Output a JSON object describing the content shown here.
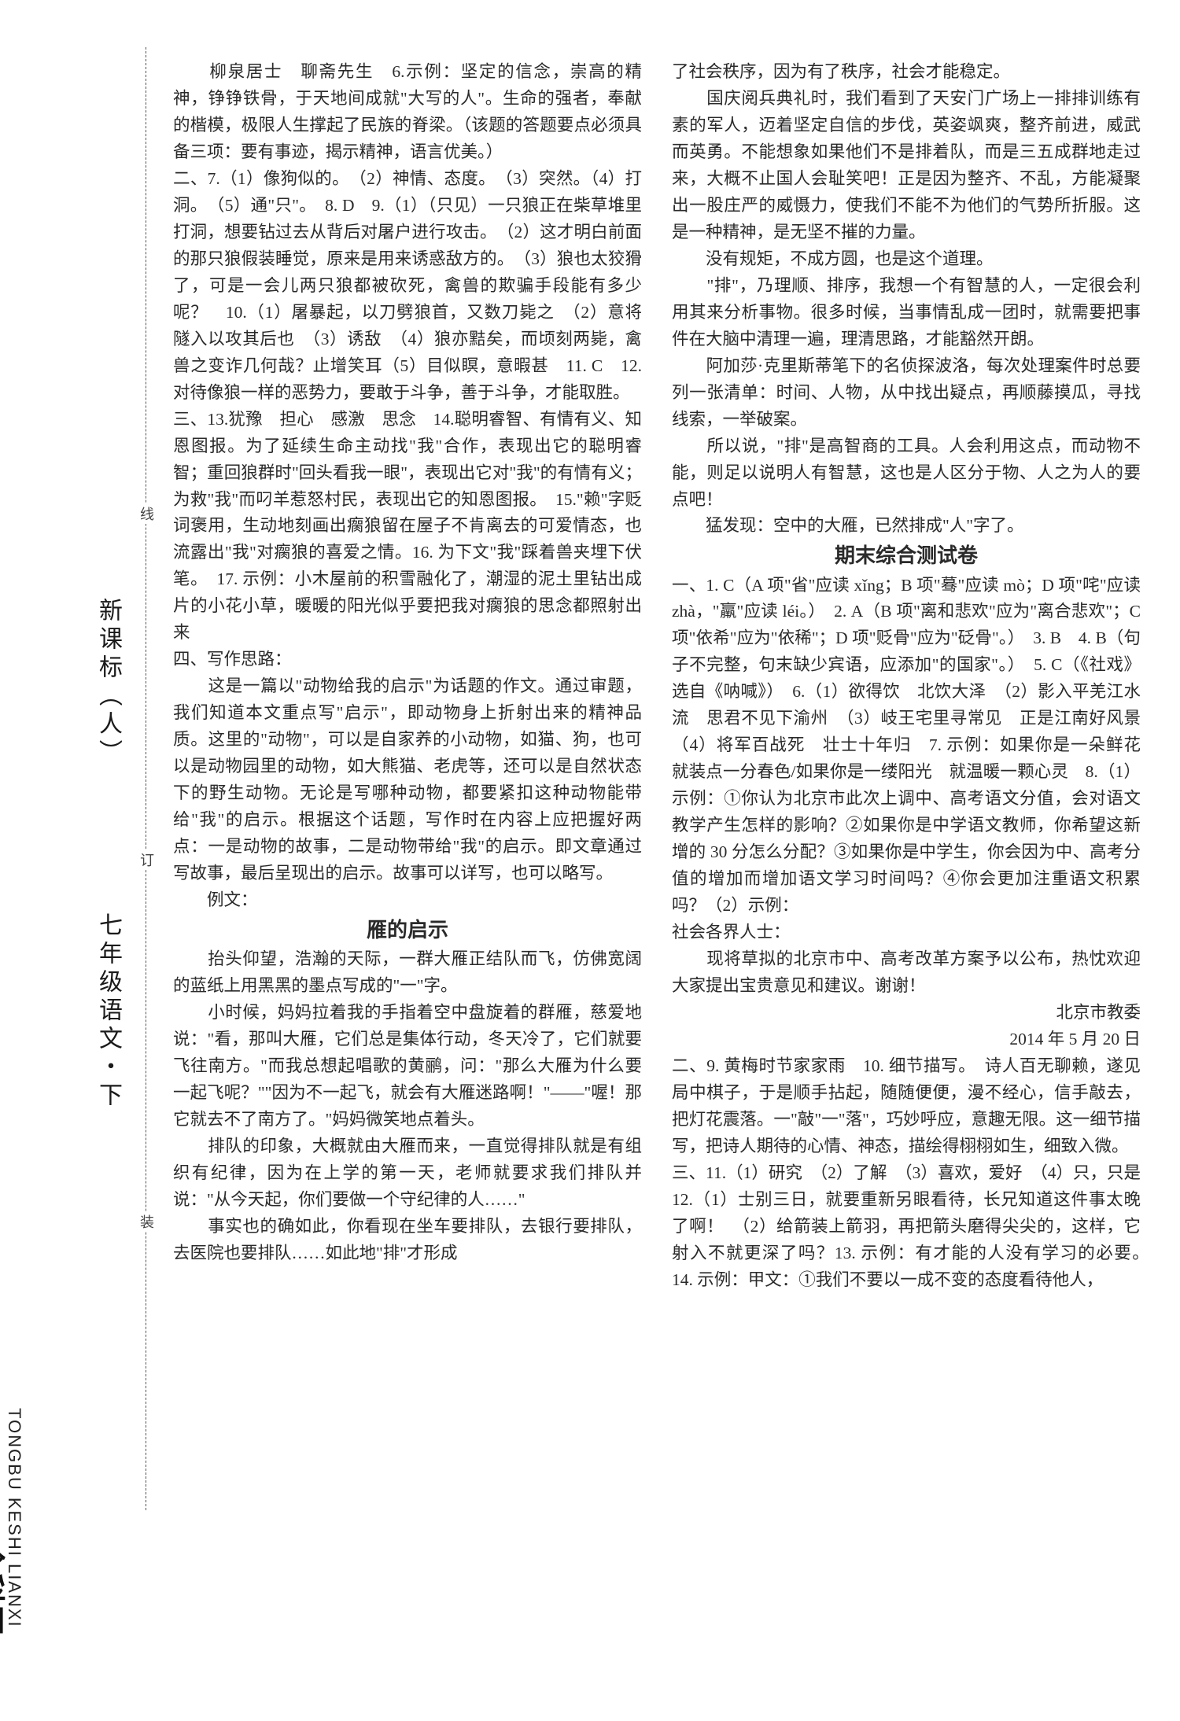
{
  "vertical_labels": {
    "label1": "新课标（人）",
    "label2": "七年级语文・下",
    "label3": ""
  },
  "spine": {
    "series": "TONGBU KESHI LIANXI",
    "brand": "全科王"
  },
  "binding": {
    "c1": "线",
    "c2": "订",
    "c3": "装"
  },
  "left_column": {
    "p1": "　　柳泉居士　聊斋先生　6.示例：坚定的信念，崇高的精神，铮铮铁骨，于天地间成就\"大写的人\"。生命的强者，奉献的楷模，极限人生撑起了民族的脊梁。（该题的答题要点必须具备三项：要有事迹，揭示精神，语言优美。）",
    "p2": "二、7.（1）像狗似的。　（2）神情、态度。　（3）突然。（4）打洞。　（5）通\"只\"。　8. D　9.（1）（只见）一只狼正在柴草堆里打洞，想要钻过去从背后对屠户进行攻击。　（2）这才明白前面的那只狼假装睡觉，原来是用来诱惑敌方的。　（3）狼也太狡猾了，可是一会儿两只狼都被砍死，禽兽的欺骗手段能有多少呢？　10.（1）屠暴起，以刀劈狼首，又数刀毙之　（2）意将隧入以攻其后也　（3）诱敌　（4）狼亦黠矣，而顷刻两毙，禽兽之变诈几何哉？止增笑耳（5）目似瞑，意暇甚　11. C　12. 对待像狼一样的恶势力，要敢于斗争，善于斗争，才能取胜。",
    "p3": "三、13.犹豫　担心　感激　思念　14.聪明睿智、有情有义、知恩图报。为了延续生命主动找\"我\"合作，表现出它的聪明睿智；重回狼群时\"回头看我一眼\"，表现出它对\"我\"的有情有义；为救\"我\"而叼羊惹怒村民，表现出它的知恩图报。　15.\"赖\"字贬词褒用，生动地刻画出瘸狼留在屋子不肯离去的可爱情态，也流露出\"我\"对瘸狼的喜爱之情。16. 为下文\"我\"踩着兽夹埋下伏笔。　17. 示例：小木屋前的积雪融化了，潮湿的泥土里钻出成片的小花小草，暖暖的阳光似乎要把我对瘸狼的思念都照射出来",
    "p4": "四、写作思路：",
    "p5": "　　这是一篇以\"动物给我的启示\"为话题的作文。通过审题，我们知道本文重点写\"启示\"，即动物身上折射出来的精神品质。这里的\"动物\"，可以是自家养的小动物，如猫、狗，也可以是动物园里的动物，如大熊猫、老虎等，还可以是自然状态下的野生动物。无论是写哪种动物，都要紧扣这种动物能带给\"我\"的启示。根据这个话题，写作时在内容上应把握好两点：一是动物的故事，二是动物带给\"我\"的启示。即文章通过写故事，最后呈现出的启示。故事可以详写，也可以略写。",
    "p6": "　　例文：",
    "p7_title": "雁的启示",
    "p8": "　　抬头仰望，浩瀚的天际，一群大雁正结队而飞，仿佛宽阔的蓝纸上用黑黑的墨点写成的\"一\"字。",
    "p9": "　　小时候，妈妈拉着我的手指着空中盘旋着的群雁，慈爱地说：\"看，那叫大雁，它们总是集体行动，冬天冷了，它们就要飞往南方。\"而我总想起唱歌的黄鹂，问：\"那么大雁为什么要一起飞呢？\"\"因为不一起飞，就会有大雁迷路啊！\"——\"喔！那它就去不了南方了。\"妈妈微笑地点着头。",
    "p10": "　　排队的印象，大概就由大雁而来，一直觉得排队就是有组织有纪律，因为在上学的第一天，老师就要求我们排队并说：\"从今天起，你们要做一个守纪律的人……\"",
    "p11": "　　事实也的确如此，你看现在坐车要排队，去银行要排队，去医院也要排队……如此地\"排\"才形成"
  },
  "right_column": {
    "p1": "了社会秩序，因为有了秩序，社会才能稳定。",
    "p2": "　　国庆阅兵典礼时，我们看到了天安门广场上一排排训练有素的军人，迈着坚定自信的步伐，英姿飒爽，整齐前进，威武而英勇。不能想象如果他们不是排着队，而是三五成群地走过来，大概不止国人会耻笑吧！正是因为整齐、不乱，方能凝聚出一股庄严的威慑力，使我们不能不为他们的气势所折服。这是一种精神，是无坚不摧的力量。",
    "p3": "　　没有规矩，不成方圆，也是这个道理。",
    "p4": "　　\"排\"，乃理顺、排序，我想一个有智慧的人，一定很会利用其来分析事物。很多时候，当事情乱成一团时，就需要把事件在大脑中清理一遍，理清思路，才能豁然开朗。",
    "p5": "　　阿加莎·克里斯蒂笔下的名侦探波洛，每次处理案件时总要列一张清单：时间、人物，从中找出疑点，再顺藤摸瓜，寻找线索，一举破案。",
    "p6": "　　所以说，\"排\"是高智商的工具。人会利用这点，而动物不能，则足以说明人有智慧，这也是人区分于物、人之为人的要点吧！",
    "p7": "　　猛发现：空中的大雁，已然排成\"人\"字了。",
    "p8_title": "期末综合测试卷",
    "p9": "一、1. C（A 项\"省\"应读 xǐng；B 项\"蓦\"应读 mò；D 项\"咤\"应读 zhà，\"羸\"应读 léi。）　2. A（B 项\"离和悲欢\"应为\"离合悲欢\"；C 项\"依希\"应为\"依稀\"；D 项\"贬骨\"应为\"砭骨\"。）　3. B　4. B（句子不完整，句末缺少宾语，应添加\"的国家\"。）　5. C（《社戏》选自《呐喊》）　6.（1）欲得饮　北饮大泽　（2）影入平羌江水流　思君不见下渝州　（3）岐王宅里寻常见　正是江南好风景　（4）将军百战死　壮士十年归　7. 示例：如果你是一朵鲜花　就装点一分春色/如果你是一缕阳光　就温暖一颗心灵　8.（1）示例：①你认为北京市此次上调中、高考语文分值，会对语文教学产生怎样的影响？②如果你是中学语文教师，你希望这新增的 30 分怎么分配？③如果你是中学生，你会因为中、高考分值的增加而增加语文学习时间吗？④你会更加注重语文积累吗？（2）示例：",
    "p10": "社会各界人士：",
    "p11": "　　现将草拟的北京市中、高考改革方案予以公布，热忱欢迎大家提出宝贵意见和建议。谢谢！",
    "p12": "北京市教委",
    "p13": "2014 年 5 月 20 日",
    "p14": "二、9. 黄梅时节家家雨　10. 细节描写。　诗人百无聊赖，遂见局中棋子，于是顺手拈起，随随便便，漫不经心，信手敲去，把灯花震落。一\"敲\"一\"落\"，巧妙呼应，意趣无限。这一细节描写，把诗人期待的心情、神态，描绘得栩栩如生，细致入微。",
    "p15": "三、11.（1）研究　（2）了解　（3）喜欢，爱好　（4）只，只是　12.（1）士别三日，就要重新另眼看待，长兄知道这件事太晚了啊！　（2）给箭装上箭羽，再把箭头磨得尖尖的，这样，它射入不就更深了吗？13. 示例：有才能的人没有学习的必要。　14. 示例：甲文：①我们不要以一成不变的态度看待他人，"
  }
}
